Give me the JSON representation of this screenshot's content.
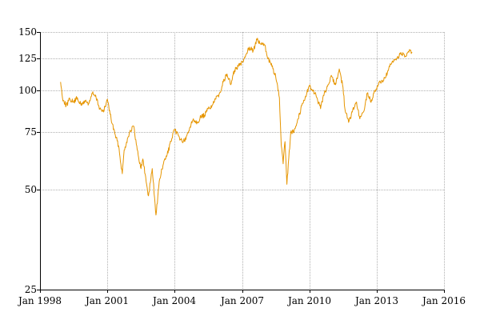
{
  "chart_data": {
    "type": "line",
    "title": "",
    "xlabel": "",
    "ylabel": "",
    "y_scale": "log",
    "grid": true,
    "legend": "none",
    "xlim": [
      "1998-01",
      "2016-01"
    ],
    "ylim": [
      25,
      150
    ],
    "x_ticks": [
      {
        "value": "1998-01",
        "label": "Jan 1998"
      },
      {
        "value": "2001-01",
        "label": "Jan 2001"
      },
      {
        "value": "2004-01",
        "label": "Jan 2004"
      },
      {
        "value": "2007-01",
        "label": "Jan 2007"
      },
      {
        "value": "2010-01",
        "label": "Jan 2010"
      },
      {
        "value": "2013-01",
        "label": "Jan 2013"
      },
      {
        "value": "2016-01",
        "label": "Jan 2016"
      }
    ],
    "y_ticks": [
      {
        "value": 25,
        "label": "25"
      },
      {
        "value": 50,
        "label": "50"
      },
      {
        "value": 75,
        "label": "75"
      },
      {
        "value": 100,
        "label": "100"
      },
      {
        "value": 125,
        "label": "125"
      },
      {
        "value": 150,
        "label": "150"
      }
    ],
    "series": [
      {
        "color": "#e69500",
        "x": [
          "1998-12",
          "1999-01",
          "1999-03",
          "1999-05",
          "1999-07",
          "1999-09",
          "1999-11",
          "2000-01",
          "2000-03",
          "2000-05",
          "2000-07",
          "2000-09",
          "2000-11",
          "2001-01",
          "2001-03",
          "2001-05",
          "2001-07",
          "2001-09",
          "2001-10",
          "2001-12",
          "2002-01",
          "2002-03",
          "2002-05",
          "2002-07",
          "2002-08",
          "2002-10",
          "2002-11",
          "2003-01",
          "2003-03",
          "2003-05",
          "2003-07",
          "2003-09",
          "2003-11",
          "2004-01",
          "2004-03",
          "2004-05",
          "2004-07",
          "2004-09",
          "2004-11",
          "2005-01",
          "2005-03",
          "2005-05",
          "2005-07",
          "2005-09",
          "2005-11",
          "2006-01",
          "2006-03",
          "2006-05",
          "2006-07",
          "2006-09",
          "2006-11",
          "2007-01",
          "2007-03",
          "2007-05",
          "2007-07",
          "2007-09",
          "2007-11",
          "2008-01",
          "2008-03",
          "2008-05",
          "2008-07",
          "2008-09",
          "2008-10",
          "2008-11",
          "2008-12",
          "2009-01",
          "2009-03",
          "2009-05",
          "2009-07",
          "2009-09",
          "2009-11",
          "2010-01",
          "2010-03",
          "2010-05",
          "2010-07",
          "2010-09",
          "2010-11",
          "2011-01",
          "2011-03",
          "2011-05",
          "2011-07",
          "2011-08",
          "2011-10",
          "2011-12",
          "2012-02",
          "2012-04",
          "2012-06",
          "2012-08",
          "2012-10",
          "2012-12",
          "2013-02",
          "2013-04",
          "2013-06",
          "2013-08",
          "2013-10",
          "2013-12",
          "2014-02",
          "2014-04",
          "2014-06",
          "2014-08"
        ],
        "y": [
          106,
          95,
          90,
          94,
          92,
          95,
          90,
          93,
          91,
          98,
          95,
          88,
          86,
          94,
          82,
          74,
          68,
          56,
          66,
          72,
          75,
          78,
          66,
          58,
          62,
          52,
          48,
          58,
          42,
          54,
          60,
          64,
          70,
          76,
          73,
          70,
          71,
          77,
          82,
          80,
          83,
          84,
          88,
          90,
          94,
          98,
          106,
          112,
          104,
          115,
          118,
          122,
          128,
          135,
          132,
          142,
          138,
          137,
          125,
          118,
          110,
          95,
          68,
          60,
          70,
          52,
          74,
          76,
          82,
          90,
          96,
          103,
          100,
          95,
          88,
          98,
          104,
          110,
          104,
          116,
          102,
          88,
          80,
          86,
          92,
          82,
          86,
          98,
          92,
          100,
          104,
          107,
          110,
          118,
          122,
          125,
          130,
          126,
          131,
          130
        ]
      }
    ]
  }
}
